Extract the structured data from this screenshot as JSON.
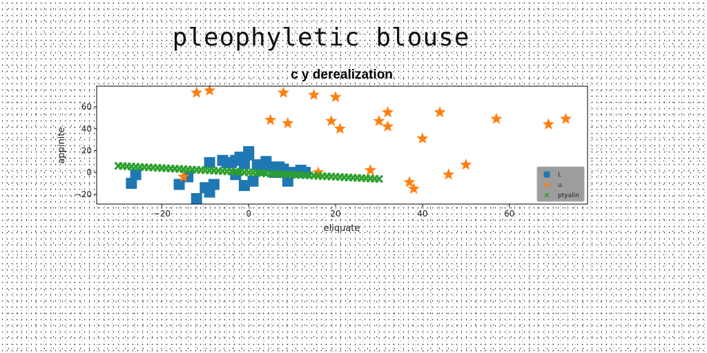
{
  "page": {
    "title": "pleophyletic blouse"
  },
  "chart_data": {
    "type": "scatter",
    "title": "c y derealization",
    "xlabel": "eliquate",
    "ylabel": "appinite",
    "xlim": [
      -35,
      78
    ],
    "ylim": [
      -29,
      79
    ],
    "xticks": [
      -20,
      0,
      20,
      40,
      60
    ],
    "yticks": [
      -20,
      0,
      20,
      40,
      60
    ],
    "grid": false,
    "legend_position": "lower-right",
    "series": [
      {
        "name": "L",
        "marker": "square",
        "color": "#1f77b4",
        "points": [
          [
            -27,
            -10
          ],
          [
            -26,
            -2
          ],
          [
            -16,
            -11
          ],
          [
            -14,
            -4
          ],
          [
            -12,
            -24
          ],
          [
            -10,
            -14
          ],
          [
            -9,
            9
          ],
          [
            -9,
            -18
          ],
          [
            -8,
            -11
          ],
          [
            -6,
            11
          ],
          [
            -5,
            9
          ],
          [
            -4,
            9
          ],
          [
            -3,
            11
          ],
          [
            -3,
            -2
          ],
          [
            -2,
            14
          ],
          [
            -1,
            8
          ],
          [
            -1,
            -12
          ],
          [
            0,
            19
          ],
          [
            0,
            16
          ],
          [
            1,
            -8
          ],
          [
            2,
            7
          ],
          [
            3,
            2
          ],
          [
            4,
            10
          ],
          [
            5,
            5
          ],
          [
            6,
            0
          ],
          [
            7,
            5
          ],
          [
            8,
            3
          ],
          [
            9,
            -8
          ],
          [
            10,
            0
          ],
          [
            12,
            2
          ],
          [
            13,
            0
          ]
        ]
      },
      {
        "name": "u",
        "marker": "star",
        "color": "#ff7f0e",
        "points": [
          [
            -15,
            -4
          ],
          [
            -12,
            73
          ],
          [
            -9,
            75
          ],
          [
            5,
            48
          ],
          [
            8,
            73
          ],
          [
            9,
            45
          ],
          [
            15,
            71
          ],
          [
            16,
            0
          ],
          [
            19,
            47
          ],
          [
            20,
            69
          ],
          [
            21,
            40
          ],
          [
            28,
            2
          ],
          [
            30,
            47
          ],
          [
            32,
            55
          ],
          [
            32,
            42
          ],
          [
            37,
            -9
          ],
          [
            38,
            -15
          ],
          [
            40,
            31
          ],
          [
            44,
            55
          ],
          [
            46,
            -2
          ],
          [
            50,
            7
          ],
          [
            57,
            49
          ],
          [
            69,
            44
          ],
          [
            73,
            49
          ]
        ]
      },
      {
        "name": "ptyalin",
        "marker": "x",
        "color": "#2ca02c",
        "points": [
          [
            -30,
            6
          ],
          [
            -29,
            5.8
          ],
          [
            -28,
            5.6
          ],
          [
            -27,
            5.4
          ],
          [
            -26,
            5.2
          ],
          [
            -25,
            5
          ],
          [
            -24,
            4.8
          ],
          [
            -23,
            4.6
          ],
          [
            -22,
            4.4
          ],
          [
            -21,
            4.2
          ],
          [
            -20,
            4
          ],
          [
            -19,
            3.8
          ],
          [
            -18,
            3.6
          ],
          [
            -17,
            3.4
          ],
          [
            -16,
            3.2
          ],
          [
            -15,
            3
          ],
          [
            -14,
            2.8
          ],
          [
            -13,
            2.6
          ],
          [
            -12,
            2.4
          ],
          [
            -11,
            2.2
          ],
          [
            -10,
            2
          ],
          [
            -9,
            1.8
          ],
          [
            -8,
            1.6
          ],
          [
            -7,
            1.4
          ],
          [
            -6,
            1.2
          ],
          [
            -5,
            1
          ],
          [
            -4,
            0.8
          ],
          [
            -3,
            0.6
          ],
          [
            -2,
            0.4
          ],
          [
            -1,
            0.2
          ],
          [
            0,
            0
          ],
          [
            1,
            -0.2
          ],
          [
            2,
            -0.4
          ],
          [
            3,
            -0.6
          ],
          [
            4,
            -0.8
          ],
          [
            5,
            -1
          ],
          [
            6,
            -1.2
          ],
          [
            7,
            -1.4
          ],
          [
            8,
            -1.6
          ],
          [
            9,
            -1.8
          ],
          [
            10,
            -2
          ],
          [
            11,
            -2.2
          ],
          [
            12,
            -2.4
          ],
          [
            13,
            -2.6
          ],
          [
            14,
            -2.8
          ],
          [
            15,
            -3
          ],
          [
            16,
            -3.2
          ],
          [
            17,
            -3.4
          ],
          [
            18,
            -3.6
          ],
          [
            19,
            -3.8
          ],
          [
            20,
            -4
          ],
          [
            21,
            -4.2
          ],
          [
            22,
            -4.4
          ],
          [
            23,
            -4.6
          ],
          [
            24,
            -4.8
          ],
          [
            25,
            -5
          ],
          [
            26,
            -5.2
          ],
          [
            27,
            -5.4
          ],
          [
            28,
            -5.6
          ],
          [
            29,
            -5.8
          ],
          [
            30,
            -6
          ]
        ]
      }
    ]
  }
}
